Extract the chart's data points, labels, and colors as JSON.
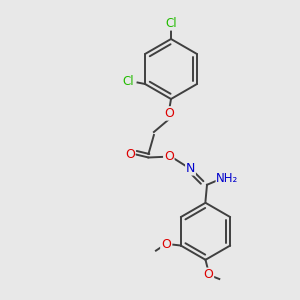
{
  "bg_color": "#e8e8e8",
  "atom_colors": {
    "O": "#dd0000",
    "N": "#0000cc",
    "Cl": "#22bb00",
    "H": "#888888"
  },
  "bond_color": "#404040",
  "bond_width": 1.4,
  "dbo": 0.012,
  "figsize": [
    3.0,
    3.0
  ],
  "dpi": 100
}
